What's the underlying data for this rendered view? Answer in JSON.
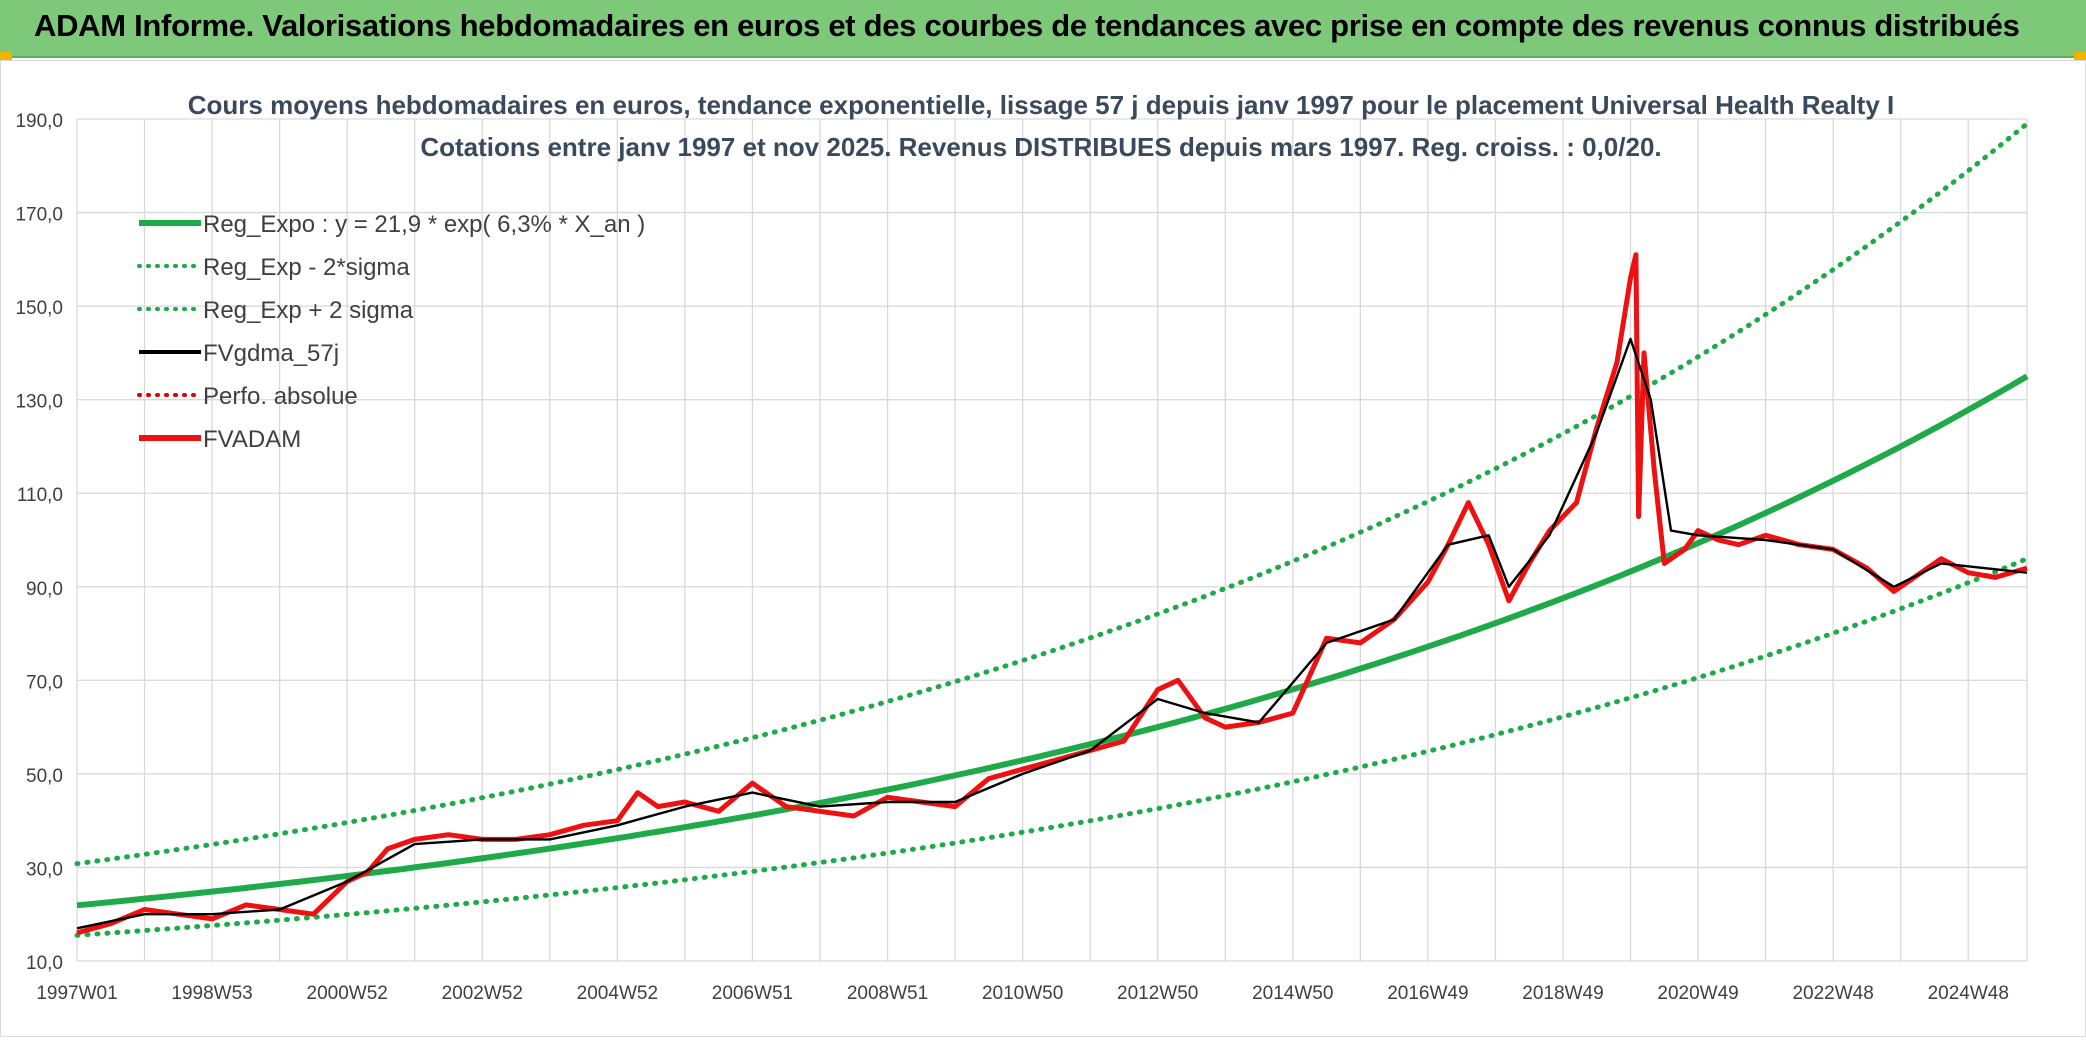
{
  "banner": {
    "title": "ADAM Informe. Valorisations hebdomadaires en euros et des courbes de tendances avec prise en compte des revenus connus distribués"
  },
  "colors": {
    "banner_bg": "#7ec87a",
    "trend": "#1faa4a",
    "sigma": "#1faa4a",
    "fvgdma": "#000000",
    "perfo": "#e00000",
    "fvadam": "#ee1111",
    "grid": "#d9d9d9",
    "axis_text": "#404040",
    "title_text": "#3a4a5c"
  },
  "chart_data": {
    "type": "line",
    "title": "Cours moyens hebdomadaires en euros, tendance exponentielle, lissage 57 j depuis janv 1997 pour le placement Universal Health Realty I",
    "subtitle": "Cotations entre janv 1997 et nov 2025. Revenus DISTRIBUES depuis mars 1997. Reg. croiss. : 0,0/20.",
    "xlabel": "",
    "ylabel": "",
    "ylim": [
      10,
      190
    ],
    "xlim": [
      1997.0,
      2025.87
    ],
    "grid": true,
    "y_ticks": [
      "10,0",
      "30,0",
      "50,0",
      "70,0",
      "90,0",
      "110,0",
      "130,0",
      "150,0",
      "170,0",
      "190,0"
    ],
    "y_tick_values": [
      10,
      30,
      50,
      70,
      90,
      110,
      130,
      150,
      170,
      190
    ],
    "x_tick_labels": [
      "1997W01",
      "1998W53",
      "2000W52",
      "2002W52",
      "2004W52",
      "2006W51",
      "2008W51",
      "2010W50",
      "2012W50",
      "2014W50",
      "2016W49",
      "2018W49",
      "2020W49",
      "2022W48",
      "2024W48"
    ],
    "x_tick_years": [
      1997.0,
      1999.0,
      2001.0,
      2003.0,
      2005.0,
      2007.0,
      2009.0,
      2011.0,
      2013.0,
      2015.0,
      2017.0,
      2019.0,
      2021.0,
      2023.0,
      2025.0
    ],
    "legend": {
      "position": "top-left",
      "entries": [
        {
          "label": "Reg_Expo : y = 21,9 * exp( 6,3% *  X_an )",
          "style": "solid-thick",
          "color": "#1faa4a"
        },
        {
          "label": "Reg_Exp - 2*sigma",
          "style": "dotted",
          "color": "#1faa4a"
        },
        {
          "label": "Reg_Exp + 2 sigma",
          "style": "dotted",
          "color": "#1faa4a"
        },
        {
          "label": "FVgdma_57j",
          "style": "solid",
          "color": "#000000"
        },
        {
          "label": "Perfo. absolue",
          "style": "dotted",
          "color": "#e00000"
        },
        {
          "label": "FVADAM",
          "style": "solid-thick",
          "color": "#ee1111"
        }
      ]
    },
    "series": [
      {
        "name": "Reg_Expo",
        "x": [
          1997.0,
          2025.87
        ],
        "y": [
          21.9,
          135.0
        ],
        "kind": "exponential"
      },
      {
        "name": "Reg_Exp - 2*sigma",
        "x": [
          1997.0,
          2025.87
        ],
        "y": [
          15.5,
          96.0
        ],
        "kind": "exponential"
      },
      {
        "name": "Reg_Exp + 2 sigma",
        "x": [
          1997.0,
          2025.87
        ],
        "y": [
          30.8,
          189.0
        ],
        "kind": "exponential"
      },
      {
        "name": "FVADAM",
        "x": [
          1997.0,
          1997.5,
          1998.0,
          1998.5,
          1999.0,
          1999.5,
          2000.0,
          2000.5,
          2001.0,
          2001.3,
          2001.6,
          2002.0,
          2002.5,
          2003.0,
          2003.5,
          2004.0,
          2004.5,
          2005.0,
          2005.3,
          2005.6,
          2006.0,
          2006.5,
          2007.0,
          2007.5,
          2008.0,
          2008.5,
          2009.0,
          2009.5,
          2010.0,
          2010.5,
          2011.0,
          2011.5,
          2012.0,
          2012.5,
          2013.0,
          2013.3,
          2013.7,
          2014.0,
          2014.5,
          2015.0,
          2015.5,
          2016.0,
          2016.5,
          2017.0,
          2017.3,
          2017.6,
          2017.9,
          2018.2,
          2018.5,
          2018.8,
          2019.2,
          2019.5,
          2019.8,
          2020.0,
          2020.08,
          2020.12,
          2020.2,
          2020.35,
          2020.5,
          2020.8,
          2021.0,
          2021.3,
          2021.6,
          2022.0,
          2022.5,
          2023.0,
          2023.5,
          2023.9,
          2024.2,
          2024.6,
          2025.0,
          2025.4,
          2025.87
        ],
        "y": [
          16,
          18,
          21,
          20,
          19,
          22,
          21,
          20,
          27,
          29,
          34,
          36,
          37,
          36,
          36,
          37,
          39,
          40,
          46,
          43,
          44,
          42,
          48,
          43,
          42,
          41,
          45,
          44,
          43,
          49,
          51,
          53,
          55,
          57,
          68,
          70,
          62,
          60,
          61,
          63,
          79,
          78,
          83,
          91,
          99,
          108,
          99,
          87,
          95,
          102,
          108,
          124,
          138,
          156,
          161,
          105,
          140,
          115,
          95,
          98,
          102,
          100,
          99,
          101,
          99,
          98,
          94,
          89,
          92,
          96,
          93,
          92,
          94
        ]
      },
      {
        "name": "FVgdma_57j",
        "x": [
          1997.0,
          1998.0,
          1999.0,
          2000.0,
          2001.0,
          2002.0,
          2003.0,
          2004.0,
          2005.0,
          2006.0,
          2007.0,
          2008.0,
          2009.0,
          2010.0,
          2011.0,
          2012.0,
          2013.0,
          2013.7,
          2014.5,
          2015.5,
          2016.5,
          2017.3,
          2017.9,
          2018.2,
          2018.8,
          2019.5,
          2020.0,
          2020.3,
          2020.6,
          2021.0,
          2022.0,
          2023.0,
          2023.9,
          2024.6,
          2025.87
        ],
        "y": [
          17,
          20,
          20,
          21,
          27,
          35,
          36,
          36,
          39,
          43,
          46,
          43,
          44,
          44,
          50,
          55,
          66,
          63,
          61,
          78,
          83,
          99,
          101,
          90,
          101,
          123,
          143,
          130,
          102,
          101,
          100,
          98,
          90,
          95,
          93
        ]
      }
    ]
  }
}
